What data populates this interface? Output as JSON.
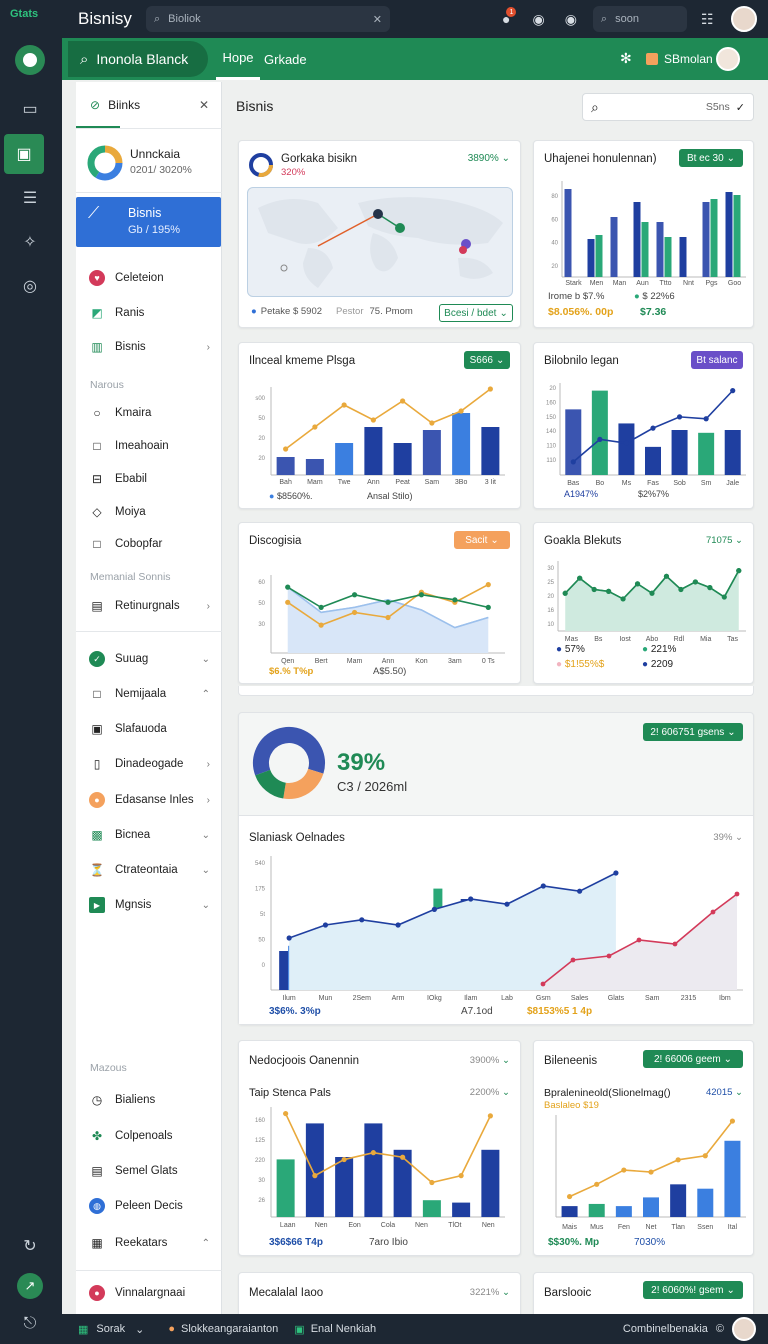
{
  "app": {
    "logo": "Gtats",
    "title": "Bisnisy"
  },
  "topbar": {
    "search_placeholder": "Bioliok",
    "search2_placeholder": "soon",
    "notif_count": "1"
  },
  "greenbar": {
    "search_label": "Inonola Blanck",
    "tabs": [
      "Hope",
      "Grkade"
    ],
    "user": "SBmolan"
  },
  "sidebar": {
    "header": "Biinks",
    "profile": {
      "name": "Unnckaia",
      "sub": "0201/ 3020%"
    },
    "active": {
      "name": "Bisnis",
      "sub": "Gb / 195%"
    },
    "items_top": [
      {
        "label": "Celeteion",
        "icon": "heart-icon"
      },
      {
        "label": "Ranis",
        "icon": "chart-icon"
      },
      {
        "label": "Bisnis",
        "icon": "bars-icon",
        "chev": "›"
      }
    ],
    "section1": "Narous",
    "items_mid": [
      {
        "label": "Kmaira"
      },
      {
        "label": "Imeahoain"
      },
      {
        "label": "Ebabil"
      },
      {
        "label": "Moiya"
      },
      {
        "label": "Cobopfar"
      }
    ],
    "section2": "Memanial Sonnis",
    "items_mid2": [
      {
        "label": "Retinurgnals",
        "chev": "›"
      }
    ],
    "items_low": [
      {
        "label": "Suuag",
        "chev": "⌄"
      },
      {
        "label": "Nemijaala",
        "chev": "⌃"
      },
      {
        "label": "Slafauoda"
      },
      {
        "label": "Dinadeogade",
        "chev": "›"
      },
      {
        "label": "Edasanse Inles",
        "chev": "›"
      },
      {
        "label": "Bicnea",
        "chev": "⌄"
      },
      {
        "label": "Ctrateontaia",
        "chev": "⌄"
      },
      {
        "label": "Mgnsis",
        "chev": "⌄"
      }
    ],
    "section3": "Mazous",
    "items_bottom": [
      {
        "label": "Bialiens"
      },
      {
        "label": "Colpenoals"
      },
      {
        "label": "Semel Glats"
      },
      {
        "label": "Peleen Decis"
      },
      {
        "label": "Reekatars",
        "chev": "⌃"
      }
    ],
    "footer": "Vinnalargnaai"
  },
  "main": {
    "heading": "Bisnis",
    "search_value": "S5ns"
  },
  "cards": {
    "map": {
      "title": "Gorkaka bisikn",
      "sub": "320%",
      "badge": "3890%",
      "f1": "Petake $ 5902",
      "f2": "Pestor",
      "f3": "75. Pmom",
      "pill": "Bcesi / bdet"
    },
    "bar1": {
      "title": "Uhajenei honulennan)",
      "pill": "Bt ec 30",
      "l1": "Irome b $7.%",
      "l2": "$ 22%6",
      "v1": "$8.056%. 00p",
      "v2": "$7.36",
      "ticks": [
        "Stark",
        "Men",
        "Man",
        "Aun",
        "Ttto",
        "Nnt",
        "Pgs",
        "Goo"
      ],
      "yt": [
        "80",
        "60",
        "40",
        "20"
      ]
    },
    "combo1": {
      "title": "Ilnceal kmeme Plsga",
      "pill": "S666",
      "ticks": [
        "Bah",
        "Mam",
        "Twe",
        "Ann",
        "Peat",
        "Sam",
        "3Bo",
        "3 Iit"
      ],
      "yt": [
        "s00",
        "50",
        "20",
        "20"
      ],
      "l1": "$8560%.",
      "l2": "Ansal Stilo)"
    },
    "combo2": {
      "title": "Bilobnilo legan",
      "pill": "Bt salanc",
      "ticks": [
        "Bas",
        "Bo",
        "Ms",
        "Fas",
        "Sob",
        "Sm",
        "Jale"
      ],
      "yt": [
        "20",
        "160",
        "150",
        "140",
        "110",
        "110"
      ],
      "l1": "A1947%",
      "l2": "$2%7%"
    },
    "area1": {
      "title": "Discogisia",
      "pill": "Sacit",
      "ticks": [
        "Qen",
        "Bert",
        "Mam",
        "Ann",
        "Kon",
        "3am",
        "0 Ts"
      ],
      "yt": [
        "60",
        "50",
        "30"
      ],
      "l1": "$6.% T%p",
      "l2": "A$5.50)"
    },
    "area2": {
      "title": "Goakla Blekuts",
      "badge": "71075",
      "ticks": [
        "Mas",
        "Bs",
        "Iost",
        "Abo",
        "Rdl",
        "Mia",
        "Tas"
      ],
      "yt": [
        "30",
        "25",
        "20",
        "16",
        "10"
      ],
      "l1": "57%",
      "l2": "221%",
      "l3": "$1!55%$",
      "l4": "2209"
    },
    "donut": {
      "pct": "39%",
      "sub": "C3 / 2026ml",
      "pill": "2! 606751 gsens"
    },
    "wide": {
      "title": "Slaniask Oelnades",
      "badge": "39%",
      "ticks": [
        "Ilum",
        "Mun",
        "2Sem",
        "Arm",
        "IOkg",
        "Ilam",
        "Lab",
        "Gsm",
        "Sales",
        "Glats",
        "Sam",
        "2315",
        "Ibm"
      ],
      "yt": [
        "540",
        "175",
        "5t",
        "50",
        "0"
      ],
      "l1": "3$6%. 3%p",
      "l2": "A7.1od",
      "l3": "$8153%5 1 4p"
    },
    "bot1": {
      "title": "Nedocjoois Oanennin",
      "badge": "3900%",
      "sub": "Taip Stenca Pals",
      "sub_badge": "2200%",
      "ticks": [
        "Laan",
        "Nen",
        "Eon",
        "Cola",
        "Nen",
        "TlOt",
        "Nen"
      ],
      "yt": [
        "160",
        "125",
        "220",
        "30",
        "26"
      ],
      "l1": "3$6$66 T4p",
      "l2": "7aro Ibio"
    },
    "bot2": {
      "title": "Bileneenis",
      "pill": "2! 66006 geem",
      "sub": "Bpralenineold(Slionelmag()",
      "sub_badge": "42015",
      "sub2": "Baslaleo $19",
      "ticks": [
        "Mais",
        "Mus",
        "Fen",
        "Net",
        "Tlan",
        "Ssen",
        "Ital"
      ],
      "l1": "$$30%. Mp",
      "l2": "7030%"
    },
    "last1": {
      "title": "Mecalalal Iaoo",
      "badge": "3221%"
    },
    "last2": {
      "title": "Barslooic",
      "pill": "2! 6060%! gsem"
    }
  },
  "bottombar": {
    "items": [
      "Sorak",
      "Slokkeangaraianton",
      "Enal Nenkiah"
    ],
    "right": "Combinelbenakia"
  },
  "colors": {
    "green": "#1f8a55",
    "navy": "#1f3fa0",
    "teal": "#2aa878",
    "blue": "#3b7fe0",
    "orange": "#e9a93c",
    "red": "#d33a5a"
  }
}
